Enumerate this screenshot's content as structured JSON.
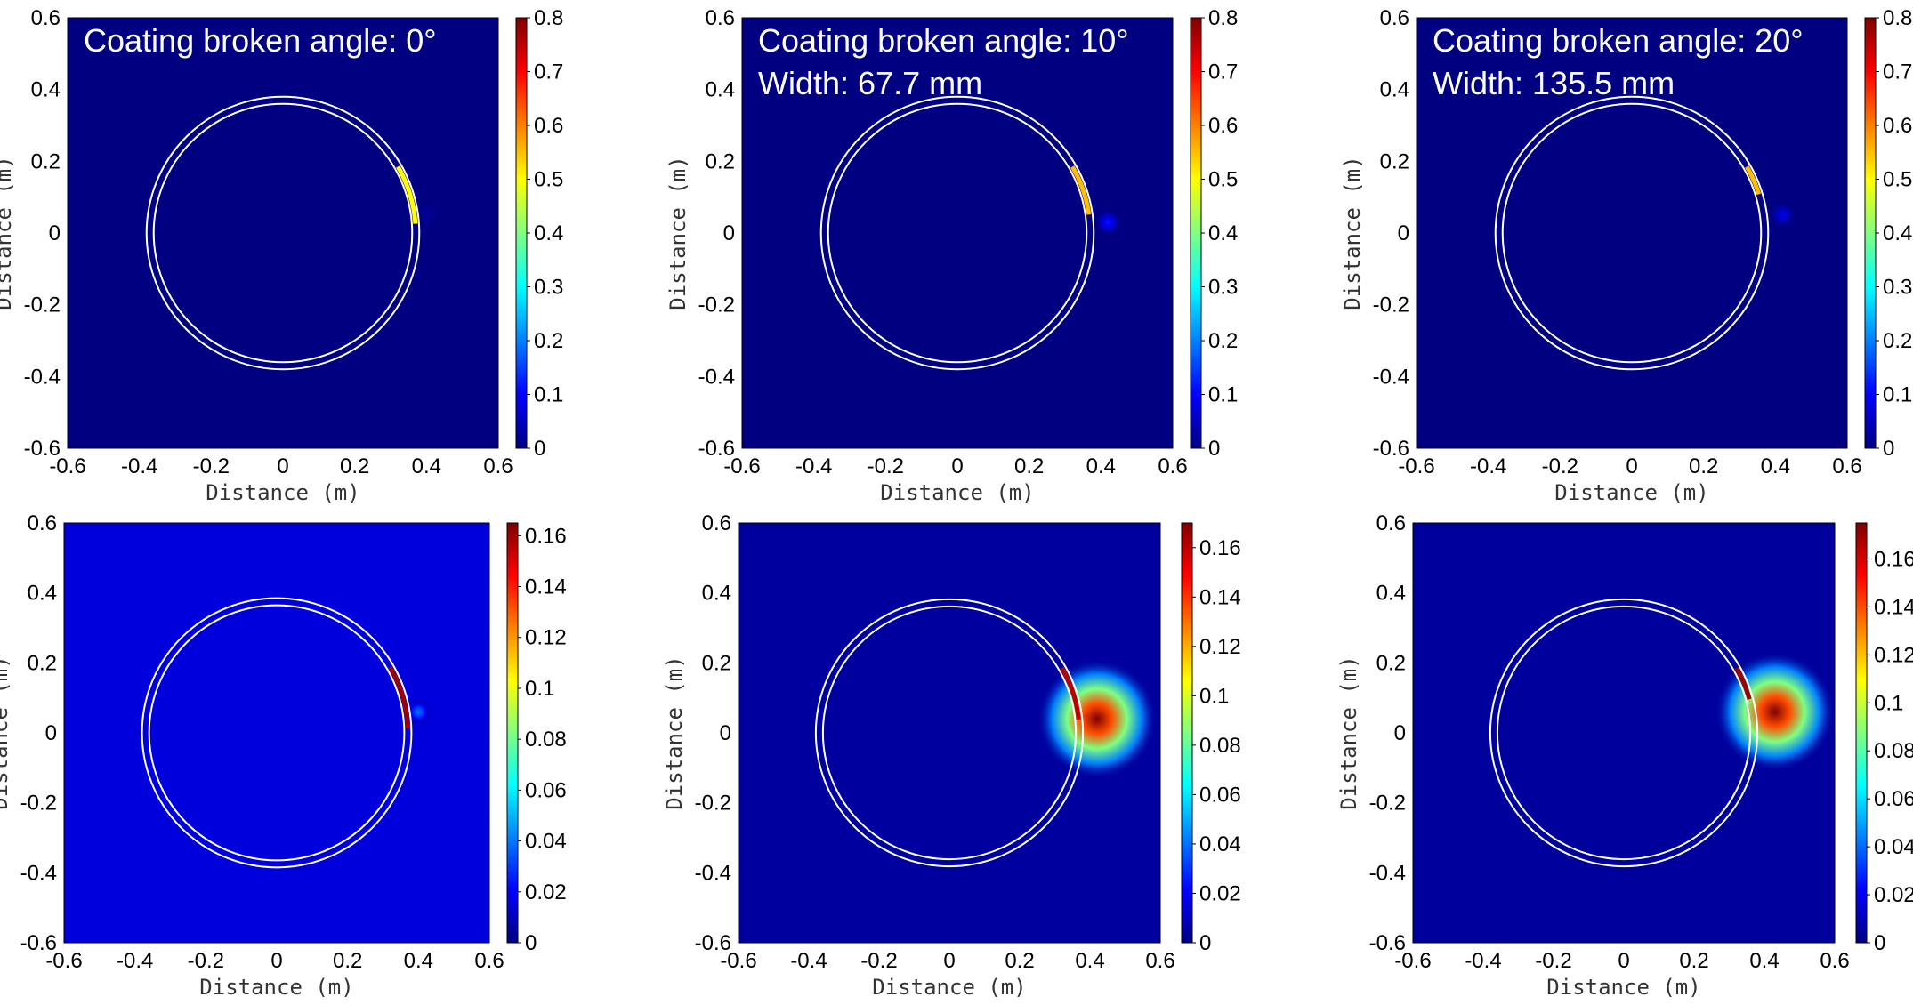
{
  "chart_data": [
    {
      "type": "heatmap",
      "annotation": [
        "Coating broken angle: 0°"
      ],
      "xlabel": "Distance  (m)",
      "ylabel": "Distance  (m)",
      "xlim": [
        -0.6,
        0.6
      ],
      "ylim": [
        -0.6,
        0.6
      ],
      "xticks": [
        "-0.6",
        "-0.4",
        "-0.2",
        "0",
        "0.2",
        "0.4",
        "0.6"
      ],
      "yticks": [
        "0.6",
        "0.4",
        "0.2",
        "0",
        "-0.2",
        "-0.4",
        "-0.6"
      ],
      "colorbar": {
        "min": 0,
        "max": 0.8,
        "ticks": [
          "0.8",
          "0.7",
          "0.6",
          "0.5",
          "0.4",
          "0.3",
          "0.2",
          "0.1",
          "0"
        ]
      },
      "colormap": "jet",
      "ring_radius": 0.38,
      "hotspot": {
        "x": 0.385,
        "y": 0.05,
        "level": 0.02
      },
      "defect_arc": {
        "start_angle_deg": 4,
        "end_angle_deg": 30,
        "level": 0.5
      }
    },
    {
      "type": "heatmap",
      "annotation": [
        "Coating broken angle: 10°",
        "Width: 67.7 mm"
      ],
      "xlabel": "Distance  (m)",
      "ylabel": "Distance  (m)",
      "xlim": [
        -0.6,
        0.6
      ],
      "ylim": [
        -0.6,
        0.6
      ],
      "xticks": [
        "-0.6",
        "-0.4",
        "-0.2",
        "0",
        "0.2",
        "0.4",
        "0.6"
      ],
      "yticks": [
        "0.6",
        "0.4",
        "0.2",
        "0",
        "-0.2",
        "-0.4",
        "-0.6"
      ],
      "colorbar": {
        "min": 0,
        "max": 0.8,
        "ticks": [
          "0.8",
          "0.7",
          "0.6",
          "0.5",
          "0.4",
          "0.3",
          "0.2",
          "0.1",
          "0"
        ]
      },
      "colormap": "jet",
      "ring_radius": 0.38,
      "hotspot": {
        "x": 0.4,
        "y": 0.03,
        "level": 0.12
      },
      "defect_arc": {
        "start_angle_deg": 8,
        "end_angle_deg": 30,
        "level": 0.55
      }
    },
    {
      "type": "heatmap",
      "annotation": [
        "Coating broken angle: 20°",
        "Width: 135.5 mm"
      ],
      "xlabel": "Distance  (m)",
      "ylabel": "Distance  (m)",
      "xlim": [
        -0.6,
        0.6
      ],
      "ylim": [
        -0.6,
        0.6
      ],
      "xticks": [
        "-0.6",
        "-0.4",
        "-0.2",
        "0",
        "0.2",
        "0.4",
        "0.6"
      ],
      "yticks": [
        "0.6",
        "0.4",
        "0.2",
        "0",
        "-0.2",
        "-0.4",
        "-0.6"
      ],
      "colorbar": {
        "min": 0,
        "max": 0.8,
        "ticks": [
          "0.8",
          "0.7",
          "0.6",
          "0.5",
          "0.4",
          "0.3",
          "0.2",
          "0.1",
          "0"
        ]
      },
      "colormap": "jet",
      "ring_radius": 0.38,
      "hotspot": {
        "x": 0.4,
        "y": 0.05,
        "level": 0.08
      },
      "defect_arc": {
        "start_angle_deg": 17,
        "end_angle_deg": 30,
        "level": 0.55
      }
    },
    {
      "type": "heatmap",
      "annotation": [],
      "xlabel": "Distance  (m)",
      "ylabel": "Distance  (m)",
      "xlim": [
        -0.6,
        0.6
      ],
      "ylim": [
        -0.6,
        0.6
      ],
      "xticks": [
        "-0.6",
        "-0.4",
        "-0.2",
        "0",
        "0.2",
        "0.4",
        "0.6"
      ],
      "yticks": [
        "0.6",
        "0.4",
        "0.2",
        "0",
        "-0.2",
        "-0.4",
        "-0.6"
      ],
      "colorbar": {
        "min": 0,
        "max": 0.165,
        "ticks": [
          "0.16",
          "0.14",
          "0.12",
          "0.1",
          "0.08",
          "0.06",
          "0.04",
          "0.02",
          "0"
        ]
      },
      "colormap": "jet",
      "background_level": 0.015,
      "ring_radius": 0.38,
      "hotspot": {
        "x": 0.38,
        "y": 0.06,
        "level": 0.04
      },
      "defect_arc": {
        "start_angle_deg": 2,
        "end_angle_deg": 30,
        "level": 0.16
      }
    },
    {
      "type": "heatmap",
      "annotation": [],
      "xlabel": "Distance  (m)",
      "ylabel": "Distance  (m)",
      "xlim": [
        -0.6,
        0.6
      ],
      "ylim": [
        -0.6,
        0.6
      ],
      "xticks": [
        "-0.6",
        "-0.4",
        "-0.2",
        "0",
        "0.2",
        "0.4",
        "0.6"
      ],
      "yticks": [
        "0.6",
        "0.4",
        "0.2",
        "0",
        "-0.2",
        "-0.4",
        "-0.6"
      ],
      "colorbar": {
        "min": 0,
        "max": 0.17,
        "ticks": [
          "0.16",
          "0.14",
          "0.12",
          "0.1",
          "0.08",
          "0.06",
          "0.04",
          "0.02",
          "0"
        ]
      },
      "colormap": "jet",
      "background_level": 0.005,
      "ring_radius": 0.38,
      "hotspot": {
        "x": 0.4,
        "y": 0.04,
        "level": 0.17
      },
      "defect_arc": {
        "start_angle_deg": 6,
        "end_angle_deg": 30,
        "level": 0.16
      }
    },
    {
      "type": "heatmap",
      "annotation": [],
      "xlabel": "Distance  (m)",
      "ylabel": "Distance  (m)",
      "xlim": [
        -0.6,
        0.6
      ],
      "ylim": [
        -0.6,
        0.6
      ],
      "xticks": [
        "-0.6",
        "-0.4",
        "-0.2",
        "0",
        "0.2",
        "0.4",
        "0.6"
      ],
      "yticks": [
        "0.6",
        "0.4",
        "0.2",
        "0",
        "-0.2",
        "-0.4",
        "-0.6"
      ],
      "colorbar": {
        "min": 0,
        "max": 0.175,
        "ticks": [
          "0.16",
          "0.14",
          "0.12",
          "0.1",
          "0.08",
          "0.06",
          "0.04",
          "0.02",
          "0"
        ]
      },
      "colormap": "jet",
      "background_level": 0.005,
      "ring_radius": 0.38,
      "hotspot": {
        "x": 0.41,
        "y": 0.06,
        "level": 0.175
      },
      "defect_arc": {
        "start_angle_deg": 15,
        "end_angle_deg": 30,
        "level": 0.17
      }
    }
  ]
}
